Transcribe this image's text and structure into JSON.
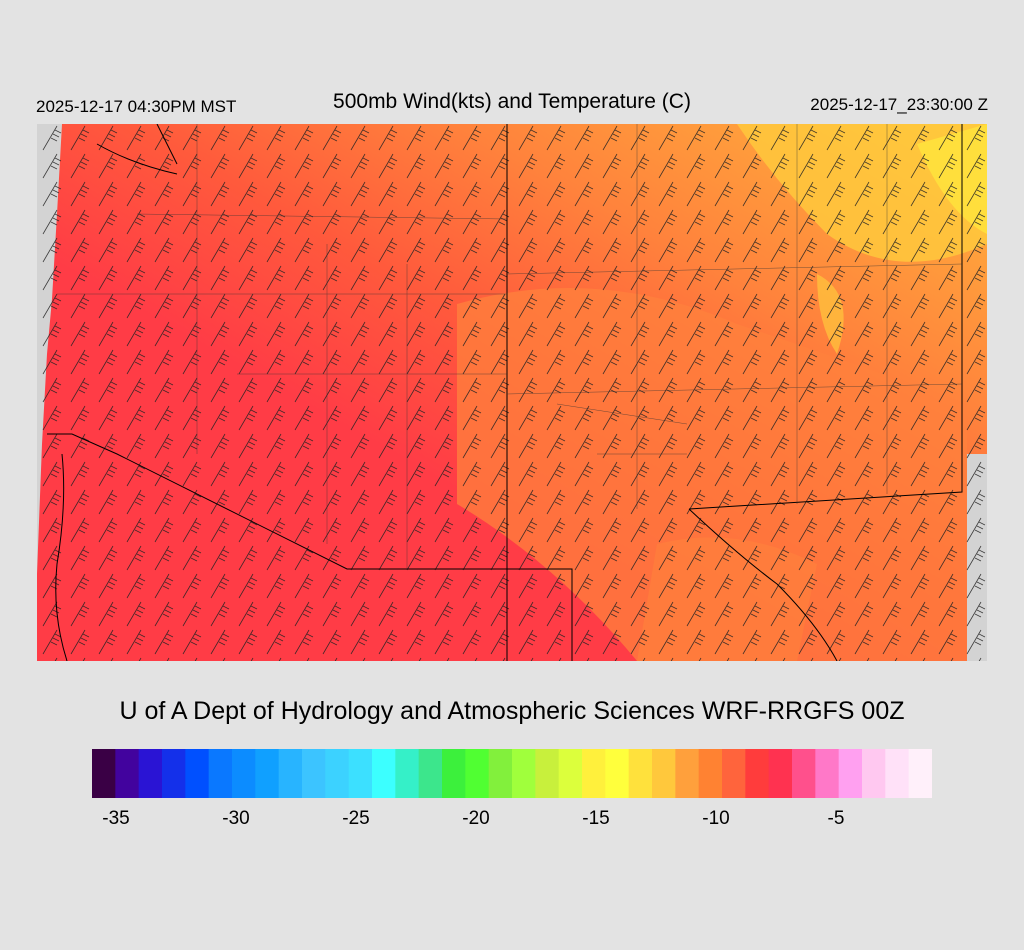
{
  "header": {
    "valid_local": "2025-12-17 04:30PM MST",
    "title": "500mb Wind(kts) and Temperature (C)",
    "valid_utc": "2025-12-17_23:30:00 Z"
  },
  "credit": "U of A Dept of Hydrology and Atmospheric Sciences WRF-RRGFS 00Z",
  "colorbar": {
    "colors": [
      "#3a0045",
      "#42039e",
      "#2a14d4",
      "#1430ea",
      "#0050ff",
      "#0a78ff",
      "#0c8cff",
      "#10a0ff",
      "#28b4ff",
      "#3cc4ff",
      "#3cd2ff",
      "#3ce0ff",
      "#3cffff",
      "#35f0c8",
      "#3ce68c",
      "#3cf03c",
      "#50ff32",
      "#82f03c",
      "#a0ff3c",
      "#c8f03c",
      "#dcff3c",
      "#fff03c",
      "#ffff3c",
      "#ffe13c",
      "#ffc83c",
      "#ffa03c",
      "#ff8232",
      "#ff643c",
      "#ff3c3c",
      "#ff3250",
      "#ff508c",
      "#ff78c8",
      "#ffa0f0",
      "#ffc8f0",
      "#ffe1f8",
      "#fff0fa"
    ],
    "tick_labels": [
      "-35",
      "-30",
      "-25",
      "-20",
      "-15",
      "-10",
      "-5"
    ],
    "tick_values": [
      -35,
      -30,
      -25,
      -20,
      -15,
      -10,
      -5
    ],
    "min_value": -36,
    "max_value": -1
  },
  "map_colors": {
    "warm_red": "#ff3c46",
    "red_orange": "#ff5a3c",
    "orange": "#ff823c",
    "light_orange": "#ffa03c",
    "yellow_orange": "#ffc83c",
    "yellow": "#ffe13c",
    "no_data": "#d3d3d3"
  }
}
